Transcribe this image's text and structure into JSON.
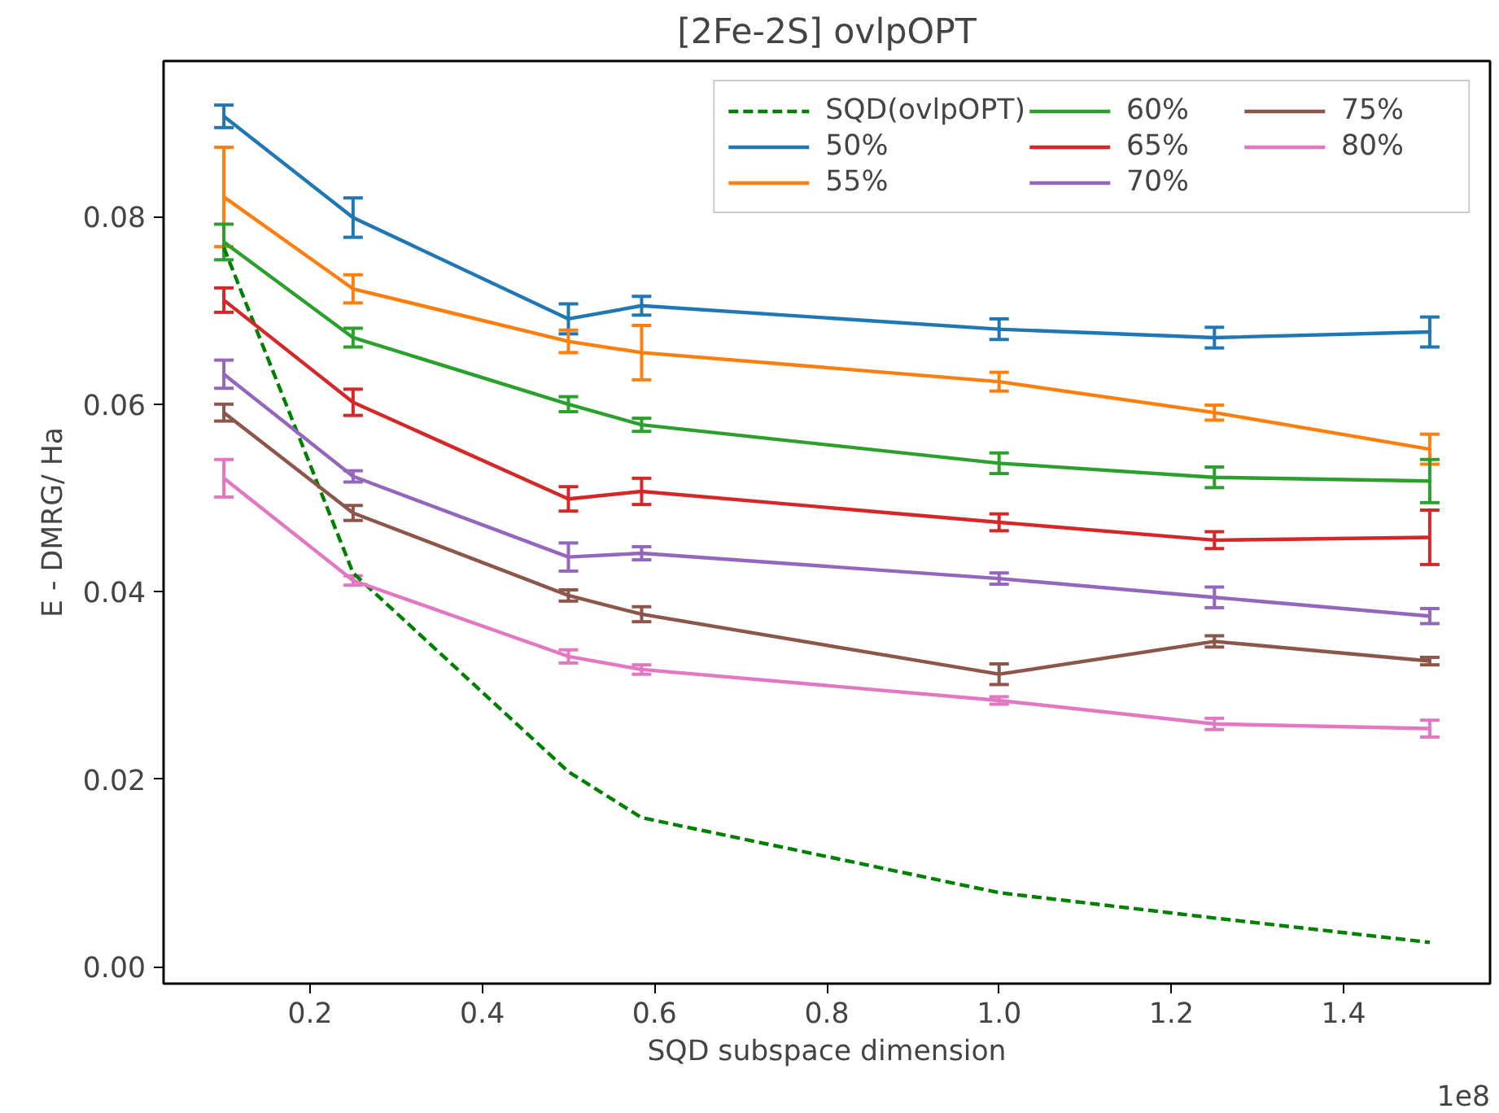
{
  "chart_data": {
    "type": "line",
    "title": "[2Fe-2S] ovlpOPT",
    "xlabel": "SQD subspace dimension",
    "ylabel": "E - DMRG/ Ha",
    "annotations": [
      "1e8"
    ],
    "x": [
      0.1,
      0.25,
      0.5,
      0.585,
      1.0,
      1.25,
      1.5
    ],
    "xlim": [
      0.03,
      1.57
    ],
    "xticks": [
      0.2,
      0.4,
      0.6,
      0.8,
      {
        "value": 1.0,
        "label": "1.0"
      },
      1.2,
      1.4
    ],
    "ylim": [
      -0.0018,
      0.0966
    ],
    "yticks": [
      {
        "value": 0,
        "label": "0.00"
      },
      {
        "value": 0.02,
        "label": "0.02"
      },
      {
        "value": 0.04,
        "label": "0.04"
      },
      {
        "value": 0.06,
        "label": "0.06"
      },
      {
        "value": 0.08,
        "label": "0.08"
      }
    ],
    "grid": false,
    "legend": "top right",
    "marker": "none",
    "series": [
      {
        "name": "SQD(ovlpOPT)",
        "color": "#008000",
        "line_style": "dashed",
        "values": [
          0.0767,
          0.042,
          0.0208,
          0.0159,
          0.0079,
          0.0052,
          0.0026
        ]
      },
      {
        "name": "50%",
        "color": "#1f77b4",
        "values": [
          0.0907,
          0.0799,
          0.0691,
          0.0705,
          0.068,
          0.0671,
          0.0677
        ],
        "errors": [
          0.0012,
          0.0021,
          0.0016,
          0.001,
          0.0011,
          0.0011,
          0.0016
        ]
      },
      {
        "name": "55%",
        "color": "#ff7f0e",
        "values": [
          0.0821,
          0.0723,
          0.0667,
          0.0655,
          0.0624,
          0.0591,
          0.0552
        ],
        "errors": [
          0.0053,
          0.0015,
          0.0012,
          0.0029,
          0.001,
          0.0008,
          0.0016
        ]
      },
      {
        "name": "60%",
        "color": "#2ca02c",
        "values": [
          0.0773,
          0.0671,
          0.06,
          0.0578,
          0.0537,
          0.0522,
          0.0518
        ],
        "errors": [
          0.0019,
          0.001,
          0.0008,
          0.0007,
          0.0011,
          0.0011,
          0.0023
        ]
      },
      {
        "name": "65%",
        "color": "#d62728",
        "values": [
          0.0711,
          0.0602,
          0.0499,
          0.0507,
          0.0474,
          0.0455,
          0.0458
        ],
        "errors": [
          0.0013,
          0.0014,
          0.0013,
          0.0014,
          0.0009,
          0.0009,
          0.0029
        ]
      },
      {
        "name": "70%",
        "color": "#9467bd",
        "values": [
          0.0632,
          0.0523,
          0.0437,
          0.0441,
          0.0414,
          0.0394,
          0.0374
        ],
        "errors": [
          0.0015,
          0.0006,
          0.0015,
          0.0007,
          0.0006,
          0.0011,
          0.0008
        ]
      },
      {
        "name": "75%",
        "color": "#8c564b",
        "values": [
          0.0591,
          0.0484,
          0.0396,
          0.0376,
          0.0312,
          0.0347,
          0.0326
        ],
        "errors": [
          0.0009,
          0.0008,
          0.0006,
          0.0008,
          0.0011,
          0.0006,
          0.0004
        ]
      },
      {
        "name": "80%",
        "color": "#e377c2",
        "values": [
          0.0521,
          0.0412,
          0.0331,
          0.0317,
          0.0284,
          0.0259,
          0.0254
        ],
        "errors": [
          0.002,
          0.0005,
          0.0007,
          0.0005,
          0.0004,
          0.0006,
          0.0009
        ]
      }
    ]
  }
}
